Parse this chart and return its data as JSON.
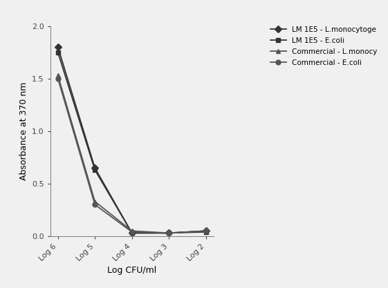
{
  "x_labels": [
    "Log 6",
    "Log 5",
    "Log 4",
    "Log 3",
    "Log 2"
  ],
  "x_positions": [
    0,
    1,
    2,
    3,
    4
  ],
  "series": [
    {
      "label": "LM 1E5 - L.monocytoge",
      "y": [
        1.8,
        0.65,
        0.03,
        0.03,
        0.05
      ],
      "color": "#333333",
      "marker": "D",
      "markersize": 5,
      "linewidth": 1.3
    },
    {
      "label": "LM 1E5 - E.coli",
      "y": [
        1.75,
        0.63,
        0.03,
        0.03,
        0.04
      ],
      "color": "#333333",
      "marker": "s",
      "markersize": 5,
      "linewidth": 1.3
    },
    {
      "label": "Commercial - L.monocy",
      "y": [
        1.53,
        0.33,
        0.05,
        0.03,
        0.05
      ],
      "color": "#555555",
      "marker": "^",
      "markersize": 5,
      "linewidth": 1.3
    },
    {
      "label": "Commercial - E.coli",
      "y": [
        1.5,
        0.3,
        0.04,
        0.03,
        0.05
      ],
      "color": "#555555",
      "marker": "o",
      "markersize": 5,
      "linewidth": 1.3
    }
  ],
  "xlabel": "Log CFU/ml",
  "ylabel": "Absorbance at 370 nm",
  "ylim": [
    0.0,
    2.0
  ],
  "yticks": [
    0.0,
    0.5,
    1.0,
    1.5,
    2.0
  ],
  "ytick_labels": [
    "0.0",
    "0.5",
    "1.0",
    "1.5",
    "2.0"
  ],
  "background_color": "#f0f0f0",
  "legend_fontsize": 7.5,
  "axis_fontsize": 9,
  "tick_fontsize": 8,
  "figure_width": 5.61,
  "figure_height": 4.17,
  "dpi": 100
}
